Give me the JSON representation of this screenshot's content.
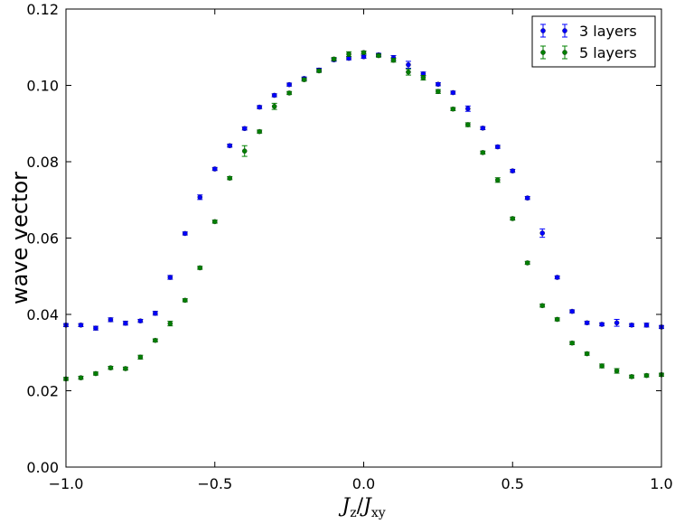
{
  "chart_data": {
    "type": "scatter",
    "title": "",
    "xlabel": "J_z/J_xy",
    "ylabel": "wave vector",
    "xlim": [
      -1.0,
      1.0
    ],
    "ylim": [
      0.0,
      0.12
    ],
    "xticks": [
      "−1.0",
      "−0.5",
      "0.0",
      "0.5",
      "1.0"
    ],
    "yticks": [
      "0.00",
      "0.02",
      "0.04",
      "0.06",
      "0.08",
      "0.10",
      "0.12"
    ],
    "grid": false,
    "legend_position": "top-right",
    "series": [
      {
        "name": "3 layers",
        "color": "#0000ff",
        "x": [
          -1.0,
          -0.95,
          -0.9,
          -0.85,
          -0.8,
          -0.75,
          -0.7,
          -0.65,
          -0.6,
          -0.55,
          -0.5,
          -0.45,
          -0.4,
          -0.35,
          -0.3,
          -0.25,
          -0.2,
          -0.15,
          -0.1,
          -0.05,
          0.0,
          0.05,
          0.1,
          0.15,
          0.2,
          0.25,
          0.3,
          0.35,
          0.4,
          0.45,
          0.5,
          0.55,
          0.6,
          0.65,
          0.7,
          0.75,
          0.8,
          0.85,
          0.9,
          0.95,
          1.0
        ],
        "y": [
          0.0372,
          0.0372,
          0.0364,
          0.0386,
          0.0377,
          0.0383,
          0.0403,
          0.0497,
          0.0612,
          0.0707,
          0.0781,
          0.0842,
          0.0887,
          0.0943,
          0.0974,
          0.1002,
          0.1018,
          0.104,
          0.1067,
          0.1071,
          0.1075,
          0.108,
          0.1072,
          0.1054,
          0.103,
          0.1003,
          0.0981,
          0.0939,
          0.0888,
          0.0839,
          0.0776,
          0.0705,
          0.0613,
          0.0497,
          0.0408,
          0.0378,
          0.0374,
          0.0378,
          0.0372,
          0.0372,
          0.0367
        ],
        "err": [
          0.0004,
          0.0004,
          0.0005,
          0.0005,
          0.0005,
          0.0004,
          0.0005,
          0.0005,
          0.0004,
          0.0006,
          0.0004,
          0.0004,
          0.0004,
          0.0004,
          0.0004,
          0.0004,
          0.0004,
          0.0005,
          0.0004,
          0.0004,
          0.0004,
          0.0004,
          0.0006,
          0.0009,
          0.0005,
          0.0004,
          0.0004,
          0.0007,
          0.0004,
          0.0004,
          0.0004,
          0.0004,
          0.0011,
          0.0004,
          0.0004,
          0.0004,
          0.0004,
          0.0009,
          0.0004,
          0.0005,
          0.0004
        ]
      },
      {
        "name": "5 layers",
        "color": "#008000",
        "x": [
          -1.0,
          -0.95,
          -0.9,
          -0.85,
          -0.8,
          -0.75,
          -0.7,
          -0.65,
          -0.6,
          -0.55,
          -0.5,
          -0.45,
          -0.4,
          -0.35,
          -0.3,
          -0.25,
          -0.2,
          -0.15,
          -0.1,
          -0.05,
          0.0,
          0.05,
          0.1,
          0.15,
          0.2,
          0.25,
          0.3,
          0.35,
          0.4,
          0.45,
          0.5,
          0.55,
          0.6,
          0.65,
          0.7,
          0.75,
          0.8,
          0.85,
          0.9,
          0.95,
          1.0
        ],
        "y": [
          0.0231,
          0.0234,
          0.0245,
          0.026,
          0.0258,
          0.0288,
          0.0332,
          0.0376,
          0.0437,
          0.0522,
          0.0643,
          0.0757,
          0.0828,
          0.0879,
          0.0945,
          0.098,
          0.1015,
          0.1038,
          0.1069,
          0.1082,
          0.1086,
          0.1078,
          0.1066,
          0.1035,
          0.102,
          0.0984,
          0.0938,
          0.0897,
          0.0824,
          0.0752,
          0.0651,
          0.0535,
          0.0423,
          0.0387,
          0.0325,
          0.0297,
          0.0265,
          0.0252,
          0.0237,
          0.024,
          0.0242
        ],
        "err": [
          0.0004,
          0.0004,
          0.0004,
          0.0004,
          0.0004,
          0.0005,
          0.0004,
          0.0006,
          0.0004,
          0.0004,
          0.0004,
          0.0004,
          0.0014,
          0.0004,
          0.0008,
          0.0004,
          0.0004,
          0.0004,
          0.0004,
          0.0006,
          0.0004,
          0.0004,
          0.0005,
          0.0008,
          0.0006,
          0.0005,
          0.0004,
          0.0005,
          0.0004,
          0.0006,
          0.0004,
          0.0004,
          0.0004,
          0.0004,
          0.0004,
          0.0004,
          0.0005,
          0.0006,
          0.0004,
          0.0004,
          0.0004
        ]
      }
    ]
  }
}
